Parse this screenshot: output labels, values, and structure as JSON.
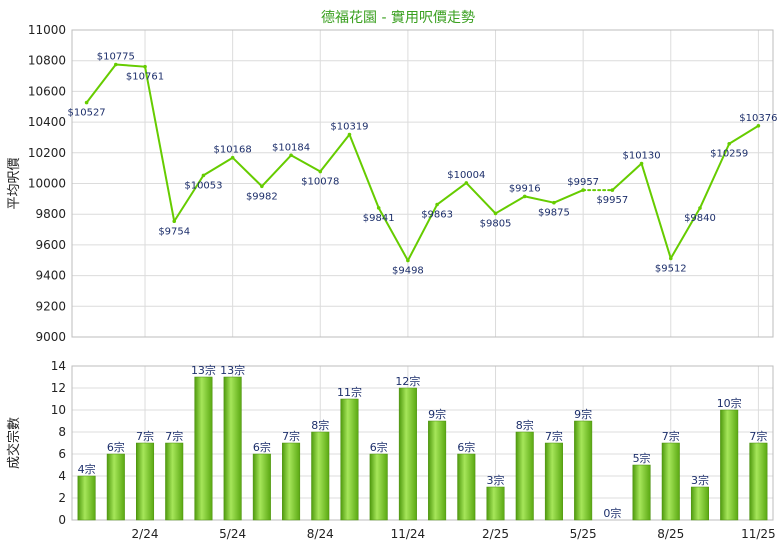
{
  "chart_data": [
    {
      "type": "line",
      "title": "德福花園 - 實用呎價走勢",
      "ylabel": "平均呎價",
      "ylim": [
        9000,
        11000
      ],
      "y_ticks": [
        9000,
        9200,
        9400,
        9600,
        9800,
        10000,
        10200,
        10400,
        10600,
        10800,
        11000
      ],
      "grid": true,
      "line_color": "#66cc00",
      "label_color": "#1d2f6b",
      "values": [
        10527,
        10775,
        10761,
        9754,
        10053,
        10168,
        9982,
        10184,
        10078,
        10319,
        9841,
        9498,
        9863,
        10004,
        9805,
        9916,
        9875,
        9957,
        9957,
        10130,
        9512,
        9840,
        10259,
        10376
      ],
      "point_labels": [
        "$10527",
        "$10775",
        "$10761",
        "$9754",
        "$10053",
        "$10168",
        "$9982",
        "$10184",
        "$10078",
        "$10319",
        "$9841",
        "$9498",
        "$9863",
        "$10004",
        "$9805",
        "$9916",
        "$9875",
        "$9957",
        "$9957",
        "$10130",
        "$9512",
        "$9840",
        "$10259",
        "$10376"
      ],
      "dotted_segments": [
        [
          17,
          18
        ]
      ]
    },
    {
      "type": "bar",
      "ylabel": "成交宗數",
      "ylim": [
        0,
        14
      ],
      "y_ticks": [
        0,
        2,
        4,
        6,
        8,
        10,
        12,
        14
      ],
      "grid": true,
      "bar_color": "#77c41f",
      "values": [
        4,
        6,
        7,
        7,
        13,
        13,
        6,
        7,
        8,
        11,
        6,
        12,
        9,
        6,
        3,
        8,
        7,
        9,
        0,
        5,
        7,
        3,
        10,
        7
      ],
      "bar_labels": [
        "4宗",
        "6宗",
        "7宗",
        "7宗",
        "13宗",
        "13宗",
        "6宗",
        "7宗",
        "8宗",
        "11宗",
        "6宗",
        "12宗",
        "9宗",
        "6宗",
        "3宗",
        "8宗",
        "7宗",
        "9宗",
        "0宗",
        "5宗",
        "7宗",
        "3宗",
        "10宗",
        "7宗"
      ],
      "x_tick_labels": [
        {
          "index": 2,
          "label": "2/24"
        },
        {
          "index": 5,
          "label": "5/24"
        },
        {
          "index": 8,
          "label": "8/24"
        },
        {
          "index": 11,
          "label": "11/24"
        },
        {
          "index": 14,
          "label": "2/25"
        },
        {
          "index": 17,
          "label": "5/25"
        },
        {
          "index": 20,
          "label": "8/25"
        },
        {
          "index": 23,
          "label": "11/25"
        }
      ]
    }
  ]
}
